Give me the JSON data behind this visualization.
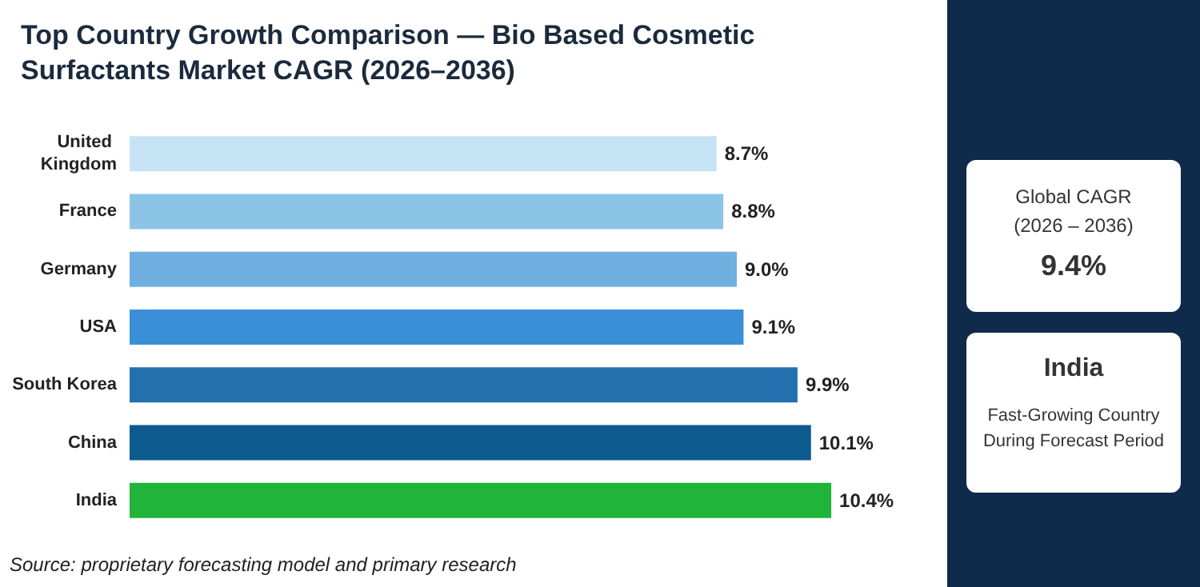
{
  "chart_data": {
    "type": "bar",
    "orientation": "horizontal",
    "title": "Top Country Growth Comparison — Bio Based Cosmetic Surfactants Market CAGR (2026–2036)",
    "categories": [
      "United Kingdom",
      "France",
      "Germany",
      "USA",
      "South Korea",
      "China",
      "India"
    ],
    "values": [
      8.7,
      8.8,
      9.0,
      9.1,
      9.9,
      10.1,
      10.4
    ],
    "colors": [
      "#c6e3f5",
      "#8cc4e8",
      "#6fb0e0",
      "#3a8fd6",
      "#2370ae",
      "#0d5a8f",
      "#20b43a"
    ],
    "value_labels": [
      "8.7%",
      "8.8%",
      "9.0%",
      "9.1%",
      "9.9%",
      "10.1%",
      "10.4%"
    ],
    "grid": false,
    "annotations": [
      "Global CAGR",
      "(2026 – 2036)",
      "9.4%",
      "India",
      "Fast-Growing Country During Forecast Period",
      "Source: proprietary forecasting model and primary research"
    ]
  }
}
